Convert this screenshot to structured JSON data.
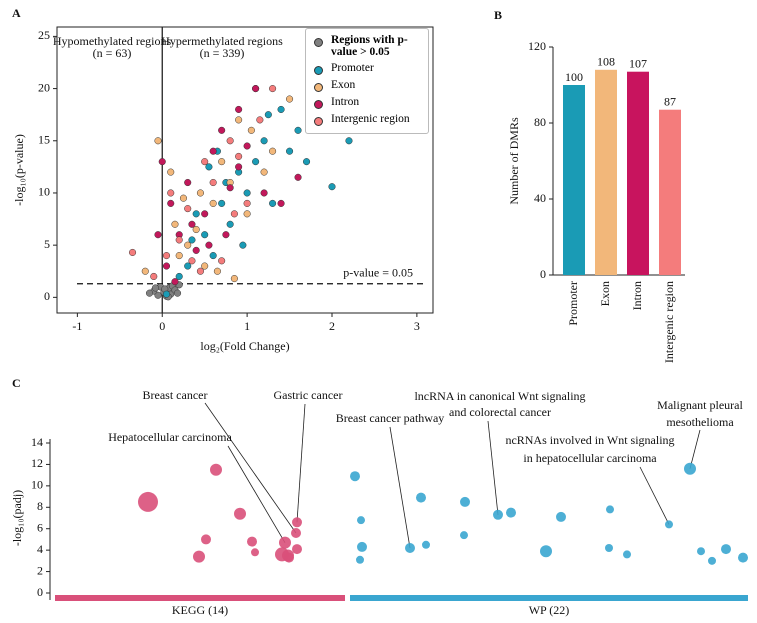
{
  "chart_data": [
    {
      "type": "scatter",
      "label": "A",
      "xlabel": "log₂(Fold Change)",
      "ylabel": "-log₁₀(p-value)",
      "xlim": [
        -1.24,
        3.19
      ],
      "ylim": [
        -1.5,
        25.9
      ],
      "xticks": [
        -1,
        0,
        1,
        2,
        3
      ],
      "yticks": [
        0,
        5,
        10,
        15,
        20,
        25
      ],
      "threshold": {
        "value": 1.3,
        "label": "p-value = 0.05"
      },
      "annotations": [
        {
          "title": "Hypomethylated regions",
          "n": "(n = 63)"
        },
        {
          "title": "Hypermethylated regions",
          "n": "(n = 339)"
        }
      ],
      "series": [
        {
          "name": "Regions with p-value > 0.05",
          "color": "#808080",
          "x": [
            -0.05,
            0.02,
            0.08,
            -0.1,
            0.12,
            0.05,
            -0.02,
            0.1,
            0.15,
            -0.15,
            0.2,
            0.03,
            0.07,
            -0.08,
            0.18
          ],
          "values": [
            0.2,
            0.5,
            0.9,
            0.6,
            1.1,
            0.1,
            1.0,
            0.3,
            0.7,
            0.4,
            1.2,
            0.8,
            0.05,
            0.9,
            0.4
          ]
        },
        {
          "name": "Promoter",
          "color": "#1a9bb5",
          "x": [
            0.3,
            0.5,
            0.7,
            0.9,
            1.2,
            1.4,
            1.5,
            1.7,
            2.2,
            2.0,
            0.6,
            0.8,
            1.0,
            0.4,
            1.1,
            0.2,
            0.75,
            1.3,
            0.95,
            1.6,
            0.05,
            0.55,
            1.25,
            0.65,
            0.35
          ],
          "values": [
            3,
            6,
            9,
            12,
            15,
            18,
            14,
            13,
            15,
            10.6,
            4,
            7,
            10,
            8,
            13,
            2,
            11,
            9,
            5,
            16,
            0.3,
            12.5,
            17.5,
            14,
            5.5
          ]
        },
        {
          "name": "Exon",
          "color": "#f2b77a",
          "x": [
            -0.05,
            0.1,
            0.3,
            0.6,
            0.9,
            1.1,
            0.45,
            0.85,
            1.0,
            0.2,
            0.7,
            1.3,
            0.5,
            -0.2,
            0.15,
            1.5,
            0.8,
            0.4,
            1.05,
            0.65,
            0.25,
            1.2
          ],
          "values": [
            15,
            12,
            5,
            9,
            17,
            20,
            10,
            1.8,
            8,
            4,
            13,
            14,
            3,
            2.5,
            7,
            19,
            11,
            6.5,
            16,
            2.5,
            9.5,
            12
          ]
        },
        {
          "name": "Intron",
          "color": "#c2185b",
          "x": [
            0.0,
            0.1,
            0.35,
            0.6,
            0.9,
            1.1,
            1.2,
            1.4,
            0.8,
            0.5,
            0.2,
            0.7,
            1.0,
            0.4,
            -0.05,
            0.05,
            0.3,
            0.75,
            1.6,
            0.15,
            0.9,
            0.55
          ],
          "values": [
            13,
            9,
            7,
            14,
            18,
            20,
            10,
            9,
            10.5,
            8,
            6,
            16,
            14.5,
            4.5,
            6,
            3,
            11,
            6,
            11.5,
            1.5,
            12.5,
            5
          ]
        },
        {
          "name": "Intergenic region",
          "color": "#f47c7c",
          "x": [
            -0.35,
            0.05,
            0.3,
            0.6,
            0.9,
            1.3,
            0.45,
            0.8,
            0.2,
            1.0,
            0.7,
            0.1,
            0.5,
            1.15,
            -0.1,
            0.35,
            0.85
          ],
          "values": [
            4.3,
            4,
            8.5,
            11,
            13.5,
            20,
            2.5,
            15,
            5.5,
            9,
            3.5,
            10,
            13,
            17,
            2,
            3.5,
            8
          ]
        }
      ]
    },
    {
      "type": "bar",
      "label": "B",
      "ylabel": "Number of DMRs",
      "categories": [
        "Promoter",
        "Exon",
        "Intron",
        "Intergenic region"
      ],
      "values": [
        100,
        108,
        107,
        87
      ],
      "colors": [
        "#1a9bb5",
        "#f2b77a",
        "#c8145e",
        "#f47c7c"
      ],
      "ylim": [
        0,
        120
      ],
      "yticks": [
        0,
        40,
        80,
        120
      ]
    },
    {
      "type": "bubble",
      "label": "C",
      "ylabel": "-log₁₀(padj)",
      "xlim": [
        0,
        693
      ],
      "ylim": [
        0,
        14
      ],
      "yticks": [
        0,
        2,
        4,
        6,
        8,
        10,
        12,
        14
      ],
      "series": [
        {
          "name": "KEGG (14)",
          "color": "#d9507a",
          "band": [
            0,
            290
          ],
          "x": [
            93,
            161,
            185,
            151,
            144,
            197,
            200,
            227,
            230,
            233,
            242,
            241,
            242,
            234
          ],
          "values": [
            8.5,
            11.5,
            7.4,
            5.0,
            3.4,
            4.8,
            3.8,
            3.6,
            4.7,
            3.5,
            6.6,
            5.6,
            4.1,
            3.3
          ],
          "sizes": [
            10,
            6,
            6,
            5,
            6,
            5,
            4,
            7,
            6,
            6,
            5,
            5,
            5,
            5
          ]
        },
        {
          "name": "WP (22)",
          "color": "#3aa6d0",
          "band": [
            295,
            693
          ],
          "x": [
            300,
            306,
            305,
            307,
            355,
            371,
            366,
            410,
            409,
            443,
            456,
            491,
            506,
            555,
            554,
            572,
            614,
            635,
            646,
            657,
            671,
            688
          ],
          "values": [
            10.9,
            6.8,
            3.1,
            4.3,
            4.2,
            4.5,
            8.9,
            8.5,
            5.4,
            7.3,
            7.5,
            3.9,
            7.1,
            7.8,
            4.2,
            3.6,
            6.4,
            11.6,
            3.9,
            3.0,
            4.1,
            3.3
          ],
          "sizes": [
            5,
            4,
            4,
            5,
            5,
            4,
            5,
            5,
            4,
            5,
            5,
            6,
            5,
            4,
            4,
            4,
            4,
            6,
            4,
            4,
            5,
            5
          ]
        }
      ],
      "annotations": [
        {
          "text": [
            "Breast cancer"
          ],
          "series": 0,
          "point": 11
        },
        {
          "text": [
            "Gastric cancer"
          ],
          "series": 0,
          "point": 10
        },
        {
          "text": [
            "Hepatocellular carcinoma"
          ],
          "series": 0,
          "point": 8
        },
        {
          "text": [
            "Breast cancer pathway"
          ],
          "series": 1,
          "point": 4
        },
        {
          "text": [
            "lncRNA in canonical Wnt signaling",
            "and colorectal cancer"
          ],
          "series": 1,
          "point": 9
        },
        {
          "text": [
            "Malignant pleural",
            "mesothelioma"
          ],
          "series": 1,
          "point": 17
        },
        {
          "text": [
            "ncRNAs involved in Wnt signaling",
            "in hepatocellular carcinoma"
          ],
          "series": 1,
          "point": 16
        }
      ]
    }
  ]
}
